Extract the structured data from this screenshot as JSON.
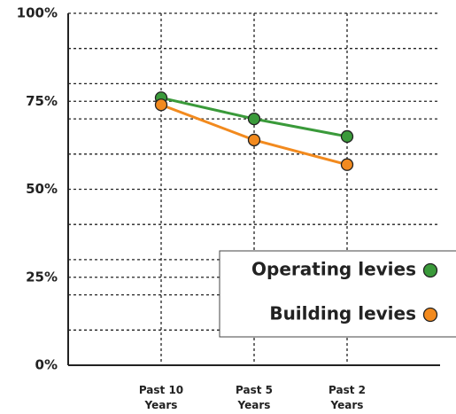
{
  "chart_data": {
    "type": "line",
    "categories": [
      "Past 10 Years",
      "Past 5 Years",
      "Past 2 Years"
    ],
    "series": [
      {
        "name": "Operating levies",
        "color": "#3a9a3a",
        "values": [
          76,
          70,
          65
        ]
      },
      {
        "name": "Building levies",
        "color": "#f28a1e",
        "values": [
          74,
          64,
          57
        ]
      }
    ],
    "ylim": [
      0,
      100
    ],
    "yticks": [
      {
        "value": 0,
        "label": "0%"
      },
      {
        "value": 25,
        "label": "25%"
      },
      {
        "value": 50,
        "label": "50%"
      },
      {
        "value": 75,
        "label": "75%"
      },
      {
        "value": 100,
        "label": "100%"
      }
    ],
    "minor_yticks": [
      10,
      20,
      30,
      40,
      60,
      70,
      80,
      90
    ],
    "grid": true,
    "legend": "lower right"
  }
}
